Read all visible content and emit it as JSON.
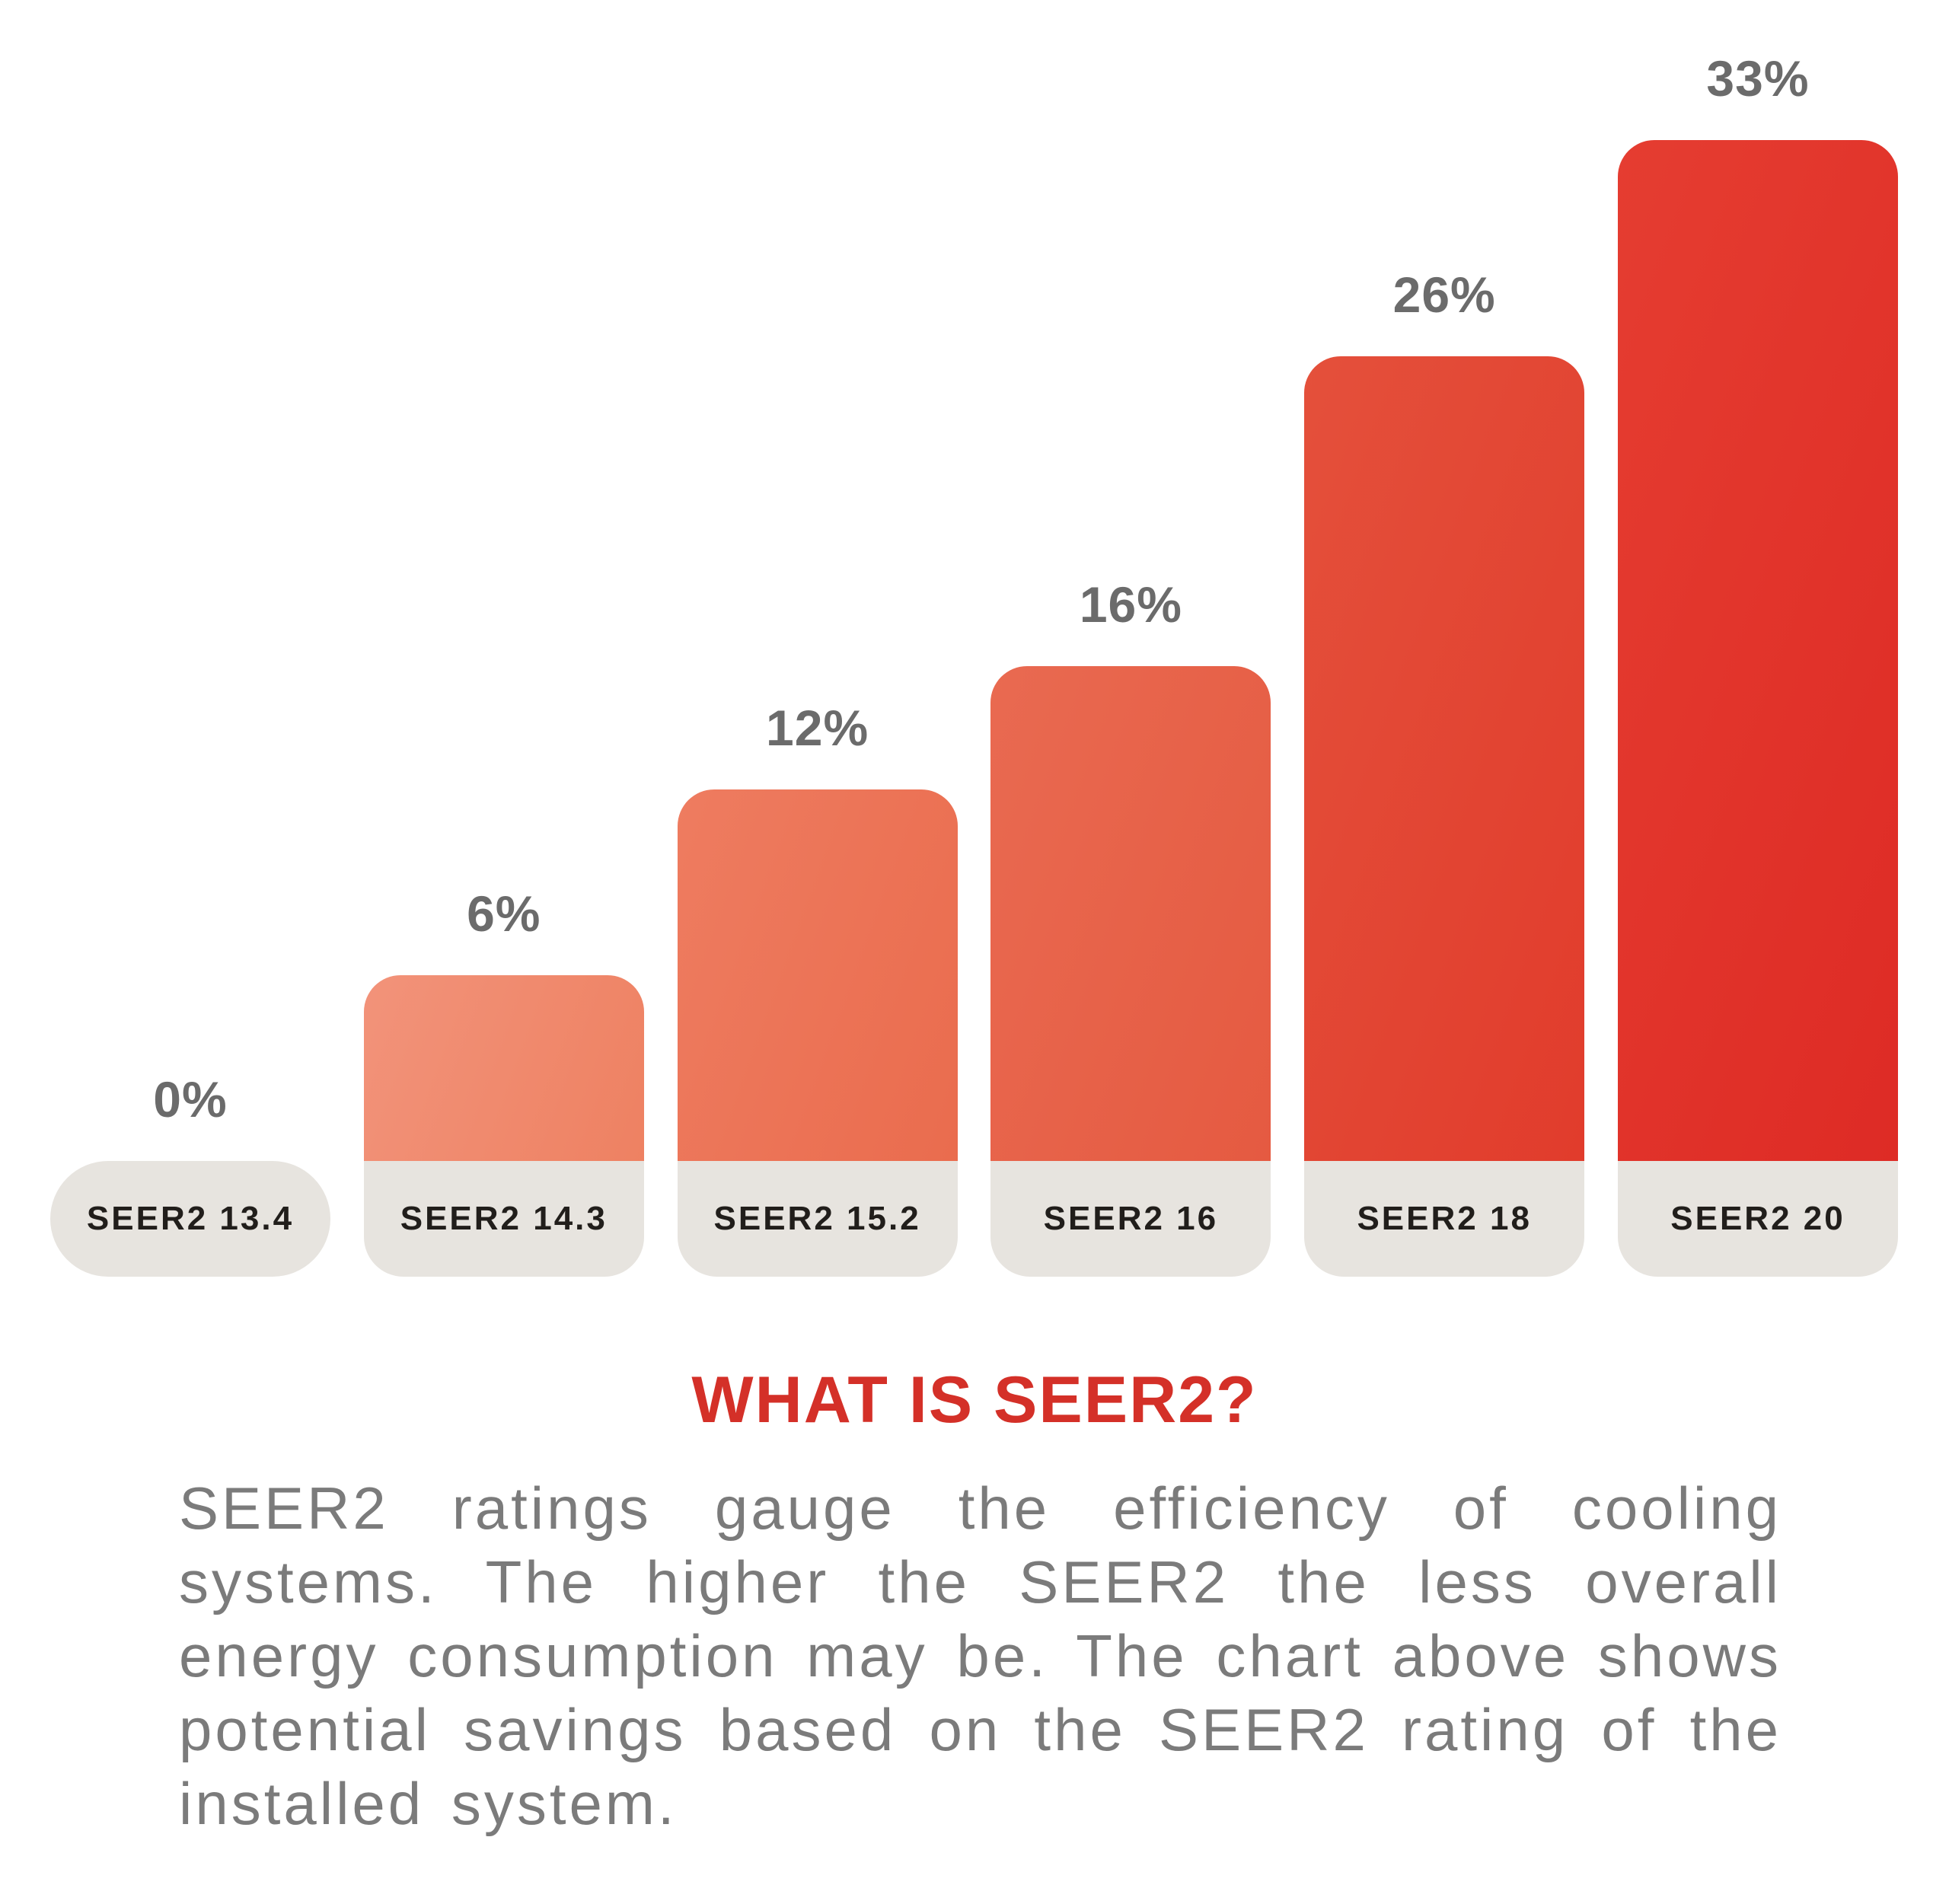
{
  "chart_data": {
    "type": "bar",
    "title": "",
    "xlabel": "",
    "ylabel": "",
    "categories": [
      "SEER2 13.4",
      "SEER2 14.3",
      "SEER2 15.2",
      "SEER2 16",
      "SEER2 18",
      "SEER2 20"
    ],
    "values": [
      0,
      6,
      12,
      16,
      26,
      33
    ],
    "value_labels": [
      "0%",
      "6%",
      "12%",
      "16%",
      "26%",
      "33%"
    ],
    "ylim": [
      0,
      33
    ],
    "grid": false,
    "legend": "none",
    "value_label_color": "#6b6b6b",
    "category_pill_color": "#e7e4df",
    "category_text_color": "#211e1b",
    "bar_gradients": [
      null,
      [
        "#f2937a",
        "#ee8162"
      ],
      [
        "#ee7c60",
        "#ea6c4e"
      ],
      [
        "#e96a51",
        "#e55a41"
      ],
      [
        "#e4503b",
        "#e13c2c"
      ],
      [
        "#e53d31",
        "#de2b25"
      ]
    ]
  },
  "info": {
    "heading": "WHAT IS SEER2?",
    "heading_color": "#d43028",
    "body": "SEER2 ratings gauge the efficiency of cooling systems. The higher the SEER2 the less overall energy consumption may be. The chart above shows potential savings based on the SEER2 rating of the installed system.",
    "body_color": "#7b7b7b"
  }
}
